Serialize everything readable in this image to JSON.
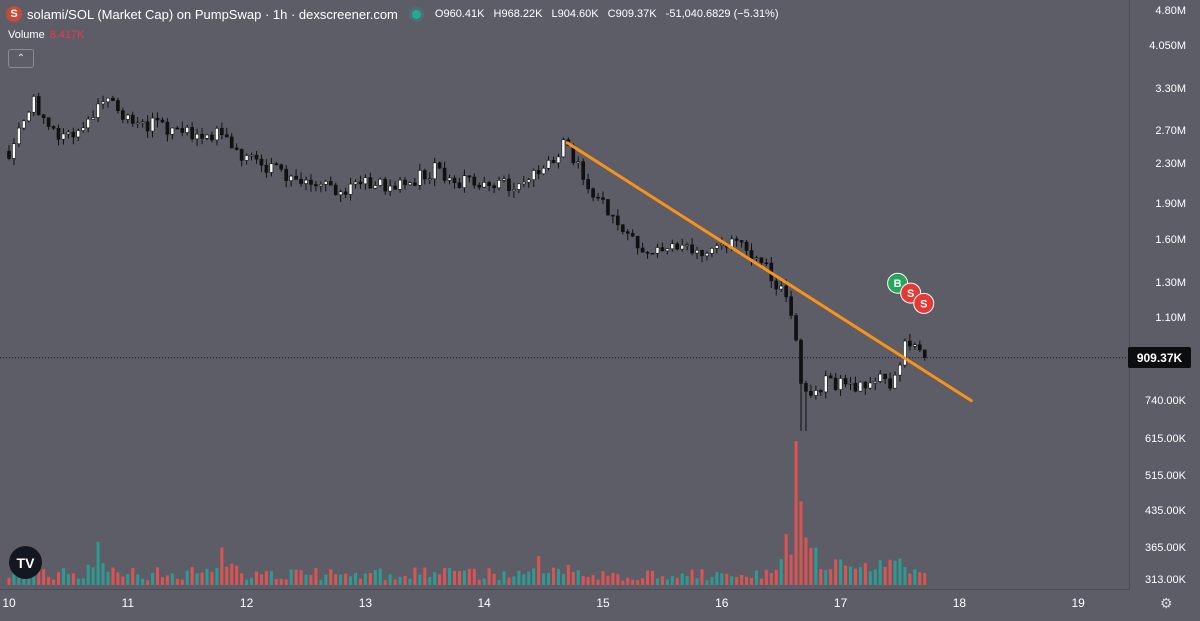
{
  "header": {
    "logo_glyph": "S",
    "title": "solami/SOL (Market Cap) on PumpSwap · 1h · dexscreener.com",
    "ohlc": {
      "o_label": "O",
      "o_value": "960.41K",
      "h_label": "H",
      "h_value": "968.22K",
      "l_label": "L",
      "l_value": "904.60K",
      "c_label": "C",
      "c_value": "909.37K",
      "change": "-51,040.6829 (−5.31%)"
    }
  },
  "volume": {
    "label": "Volume",
    "value": "8.417K"
  },
  "collapse_glyph": "⌃",
  "price_tag": "909.37K",
  "brand_glyph": "TV",
  "settings_glyph": "⚙",
  "colors": {
    "background": "#5c5d67",
    "up": "#ffffff",
    "down": "#111111",
    "vol_up": "#26a69a",
    "vol_down": "#ef5350",
    "trendline": "#f7931a",
    "buy_marker": "#26a65b",
    "sell_marker": "#e53935"
  },
  "chart_data": {
    "type": "candlestick",
    "y_scale": "log",
    "ylim": [
      300000,
      5000000
    ],
    "y_ticks": [
      {
        "value": 4800000,
        "label": "4.80M"
      },
      {
        "value": 4050000,
        "label": "4.050M"
      },
      {
        "value": 3300000,
        "label": "3.30M"
      },
      {
        "value": 2700000,
        "label": "2.70M"
      },
      {
        "value": 2300000,
        "label": "2.30M"
      },
      {
        "value": 1900000,
        "label": "1.90M"
      },
      {
        "value": 1600000,
        "label": "1.60M"
      },
      {
        "value": 1300000,
        "label": "1.30M"
      },
      {
        "value": 1100000,
        "label": "1.10M"
      },
      {
        "value": 740000,
        "label": "740.00K"
      },
      {
        "value": 615000,
        "label": "615.00K"
      },
      {
        "value": 515000,
        "label": "515.00K"
      },
      {
        "value": 435000,
        "label": "435.00K"
      },
      {
        "value": 365000,
        "label": "365.00K"
      },
      {
        "value": 313000,
        "label": "313.00K"
      }
    ],
    "x_ticks": [
      {
        "day": 10,
        "label": "10"
      },
      {
        "day": 11,
        "label": "11"
      },
      {
        "day": 12,
        "label": "12"
      },
      {
        "day": 13,
        "label": "13"
      },
      {
        "day": 14,
        "label": "14"
      },
      {
        "day": 15,
        "label": "15"
      },
      {
        "day": 16,
        "label": "16"
      },
      {
        "day": 17,
        "label": "17"
      },
      {
        "day": 18,
        "label": "18"
      },
      {
        "day": 19,
        "label": "19"
      }
    ],
    "last_close": 909370,
    "candles_per_day": 24,
    "candle_anchors": [
      {
        "day": 10.0,
        "price": 2450000
      },
      {
        "day": 10.2,
        "price": 3100000
      },
      {
        "day": 10.4,
        "price": 2650000
      },
      {
        "day": 10.6,
        "price": 2700000
      },
      {
        "day": 10.85,
        "price": 3250000
      },
      {
        "day": 11.0,
        "price": 2850000
      },
      {
        "day": 11.3,
        "price": 2750000
      },
      {
        "day": 11.6,
        "price": 2650000
      },
      {
        "day": 11.8,
        "price": 2700000
      },
      {
        "day": 12.0,
        "price": 2350000
      },
      {
        "day": 12.3,
        "price": 2200000
      },
      {
        "day": 12.6,
        "price": 2100000
      },
      {
        "day": 12.8,
        "price": 2000000
      },
      {
        "day": 13.0,
        "price": 2100000
      },
      {
        "day": 13.3,
        "price": 2060000
      },
      {
        "day": 13.6,
        "price": 2250000
      },
      {
        "day": 13.8,
        "price": 2120000
      },
      {
        "day": 14.0,
        "price": 2100000
      },
      {
        "day": 14.35,
        "price": 2070000
      },
      {
        "day": 14.55,
        "price": 2350000
      },
      {
        "day": 14.7,
        "price": 2550000
      },
      {
        "day": 14.9,
        "price": 2000000
      },
      {
        "day": 15.1,
        "price": 1800000
      },
      {
        "day": 15.35,
        "price": 1480000
      },
      {
        "day": 15.6,
        "price": 1560000
      },
      {
        "day": 15.8,
        "price": 1500000
      },
      {
        "day": 16.0,
        "price": 1580000
      },
      {
        "day": 16.2,
        "price": 1520000
      },
      {
        "day": 16.4,
        "price": 1380000
      },
      {
        "day": 16.55,
        "price": 1200000
      },
      {
        "day": 16.62,
        "price": 1010000
      },
      {
        "day": 16.68,
        "price": 770000
      },
      {
        "day": 16.9,
        "price": 810000
      },
      {
        "day": 17.1,
        "price": 790000
      },
      {
        "day": 17.3,
        "price": 820000
      },
      {
        "day": 17.45,
        "price": 800000
      },
      {
        "day": 17.55,
        "price": 1000000
      },
      {
        "day": 17.72,
        "price": 909370
      }
    ],
    "trendline": {
      "start": {
        "day": 14.7,
        "price": 2550000
      },
      "end": {
        "day": 18.1,
        "price": 740000
      }
    },
    "markers": [
      {
        "type": "buy",
        "label": "B",
        "day": 17.48,
        "price": 1300000
      },
      {
        "type": "sell",
        "label": "S",
        "day": 17.59,
        "price": 1240000
      },
      {
        "type": "sell",
        "label": "S",
        "day": 17.7,
        "price": 1180000
      }
    ],
    "volume_series": {
      "max_value": 100,
      "spikes": [
        {
          "day": 10.15,
          "value": 22
        },
        {
          "day": 10.75,
          "value": 30
        },
        {
          "day": 11.8,
          "value": 26
        },
        {
          "day": 14.45,
          "value": 20
        },
        {
          "day": 14.7,
          "value": 14
        },
        {
          "day": 16.5,
          "value": 18
        },
        {
          "day": 16.62,
          "value": 100
        },
        {
          "day": 16.68,
          "value": 58
        },
        {
          "day": 16.75,
          "value": 16
        },
        {
          "day": 17.45,
          "value": 12
        }
      ],
      "baseline": 6
    }
  }
}
